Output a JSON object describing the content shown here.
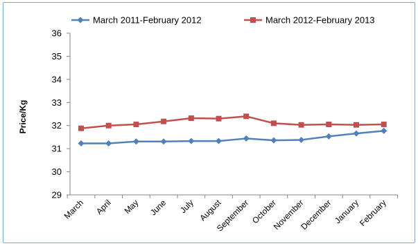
{
  "chart_data": {
    "type": "line",
    "title": "",
    "xlabel": "",
    "ylabel": "Price/Kg",
    "ylim": [
      29,
      36
    ],
    "yticks": [
      "29",
      "30",
      "31",
      "32",
      "33",
      "34",
      "35",
      "36"
    ],
    "grid": false,
    "legend_position": "top",
    "categories": [
      "March",
      "April",
      "May",
      "June",
      "July",
      "August",
      "September",
      "October",
      "November",
      "December",
      "January",
      "February"
    ],
    "series": [
      {
        "name": "March 2011-February 2012",
        "color": "#4f81bd",
        "marker": "diamond",
        "values": [
          31.23,
          31.23,
          31.31,
          31.31,
          31.33,
          31.33,
          31.44,
          31.36,
          31.38,
          31.53,
          31.66,
          31.77
        ]
      },
      {
        "name": "March 2012-February 2013",
        "color": "#c0504d",
        "marker": "square",
        "values": [
          31.88,
          32.0,
          32.05,
          32.18,
          32.32,
          32.3,
          32.4,
          32.1,
          32.03,
          32.05,
          32.03,
          32.05
        ]
      }
    ]
  }
}
